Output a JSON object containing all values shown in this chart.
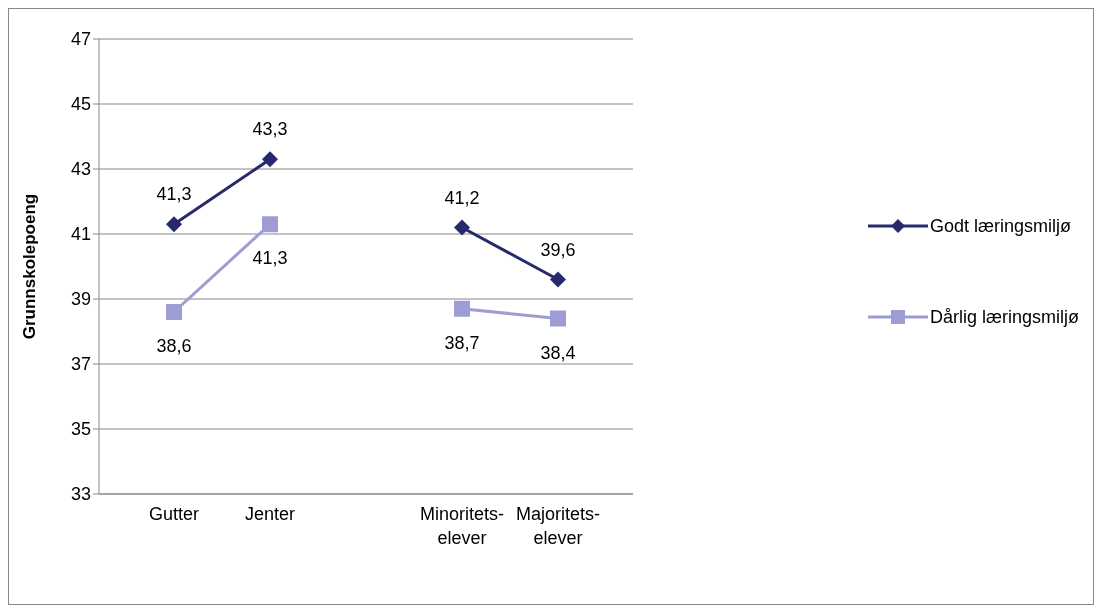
{
  "chart_data": {
    "type": "line",
    "ylabel": "Grunnskolepoeng",
    "categories": [
      "Gutter",
      "Jenter",
      null,
      "Minoritets-elever",
      "Majoritets-elever"
    ],
    "series": [
      {
        "name": "Godt læringsmiljø",
        "color": "#27296d",
        "marker": "diamond",
        "values": [
          41.3,
          43.3,
          null,
          41.2,
          39.6
        ],
        "value_labels": [
          "41,3",
          "43,3",
          null,
          "41,2",
          "39,6"
        ]
      },
      {
        "name": "Dårlig læringsmiljø",
        "color": "#9d9dd4",
        "marker": "square",
        "values": [
          38.6,
          41.3,
          null,
          38.7,
          38.4
        ],
        "value_labels": [
          "38,6",
          "41,3",
          null,
          "38,7",
          "38,4"
        ]
      }
    ],
    "ylim": [
      33,
      47
    ],
    "yticks": [
      33,
      35,
      37,
      39,
      41,
      43,
      45,
      47
    ],
    "grid": "y",
    "legend": "right"
  }
}
